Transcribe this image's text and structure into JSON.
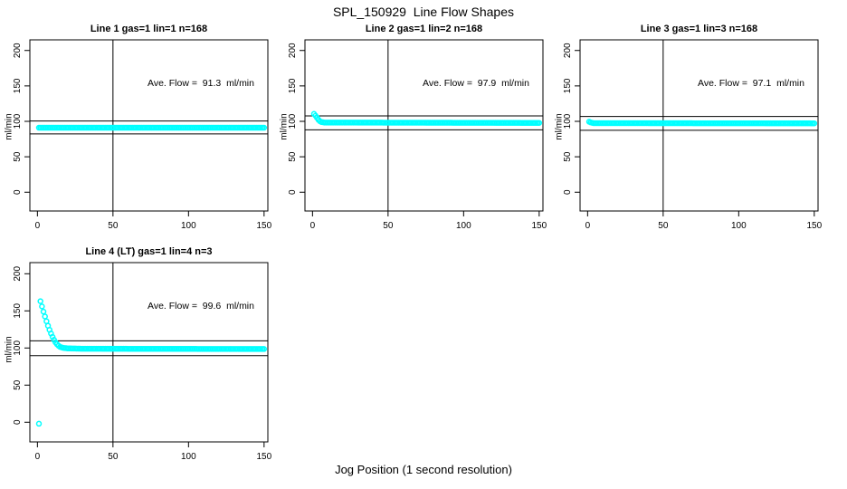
{
  "figure_title": "SPL_150929  Line Flow Shapes",
  "x_axis_label": "Jog Position (1 second resolution)",
  "colors": {
    "series": "#00ffff",
    "axis": "#000000",
    "background": "#ffffff"
  },
  "chart_data": [
    {
      "type": "scatter",
      "title": "Line 1 gas=1 lin=1 n=168",
      "ylabel": "ml/min",
      "annotation": "Ave. Flow =  91.3  ml/min",
      "ave_flow_ml_min": 91.3,
      "n_points": 168,
      "x_ticks": [
        0,
        50,
        100,
        150
      ],
      "y_ticks": [
        0,
        50,
        100,
        150,
        200
      ],
      "xlim": [
        -5,
        152.5
      ],
      "ylim": [
        -26.5,
        215
      ],
      "vline_x": 50,
      "hlines": [
        100.4,
        82.2
      ],
      "marker": "open-circle",
      "series": {
        "x_step": 1,
        "profile": [
          [
            1,
            91
          ],
          [
            150,
            91
          ]
        ]
      },
      "extra_points": []
    },
    {
      "type": "scatter",
      "title": "Line 2 gas=1 lin=2 n=168",
      "ylabel": "ml/min",
      "annotation": "Ave. Flow =  97.9  ml/min",
      "ave_flow_ml_min": 97.9,
      "n_points": 168,
      "x_ticks": [
        0,
        50,
        100,
        150
      ],
      "y_ticks": [
        0,
        50,
        100,
        150,
        200
      ],
      "xlim": [
        -5,
        152.5
      ],
      "ylim": [
        -26.5,
        215
      ],
      "vline_x": 50,
      "hlines": [
        107.7,
        88.1
      ],
      "marker": "open-circle",
      "series": {
        "x_step": 1,
        "profile": [
          [
            1,
            110.5
          ],
          [
            2,
            108
          ],
          [
            3,
            105
          ],
          [
            4,
            102
          ],
          [
            5,
            100
          ],
          [
            6,
            99
          ],
          [
            8,
            98.3
          ],
          [
            150,
            97.8
          ]
        ]
      },
      "extra_points": []
    },
    {
      "type": "scatter",
      "title": "Line 3 gas=1 lin=3 n=168",
      "ylabel": "ml/min",
      "annotation": "Ave. Flow =  97.1  ml/min",
      "ave_flow_ml_min": 97.1,
      "n_points": 168,
      "x_ticks": [
        0,
        50,
        100,
        150
      ],
      "y_ticks": [
        0,
        50,
        100,
        150,
        200
      ],
      "xlim": [
        -5,
        152.5
      ],
      "ylim": [
        -26.5,
        215
      ],
      "vline_x": 50,
      "hlines": [
        106.8,
        87.4
      ],
      "marker": "open-circle",
      "series": {
        "x_step": 1,
        "profile": [
          [
            1,
            99.5
          ],
          [
            2,
            98.5
          ],
          [
            4,
            97.5
          ],
          [
            150,
            97.2
          ]
        ]
      },
      "extra_points": []
    },
    {
      "type": "scatter",
      "title": "Line 4 (LT) gas=1 lin=4 n=3",
      "ylabel": "ml/min",
      "annotation": "Ave. Flow =  99.6  ml/min",
      "ave_flow_ml_min": 99.6,
      "n_points": 3,
      "x_ticks": [
        0,
        50,
        100,
        150
      ],
      "y_ticks": [
        0,
        50,
        100,
        150,
        200
      ],
      "xlim": [
        -5,
        152.5
      ],
      "ylim": [
        -26.5,
        215
      ],
      "vline_x": 50,
      "hlines": [
        109.6,
        89.6
      ],
      "marker": "open-circle",
      "series": {
        "x_step": 1,
        "profile": [
          [
            2,
            163
          ],
          [
            3,
            156
          ],
          [
            4,
            149
          ],
          [
            5,
            142.5
          ],
          [
            6,
            136
          ],
          [
            7,
            130
          ],
          [
            8,
            124.5
          ],
          [
            9,
            119.5
          ],
          [
            10,
            115
          ],
          [
            11,
            111
          ],
          [
            12,
            107.5
          ],
          [
            13,
            105
          ],
          [
            14,
            103
          ],
          [
            15,
            101.5
          ],
          [
            17,
            100.2
          ],
          [
            20,
            99.5
          ],
          [
            30,
            99
          ],
          [
            150,
            98.6
          ]
        ]
      },
      "extra_points": [
        [
          1,
          -2
        ]
      ]
    }
  ]
}
